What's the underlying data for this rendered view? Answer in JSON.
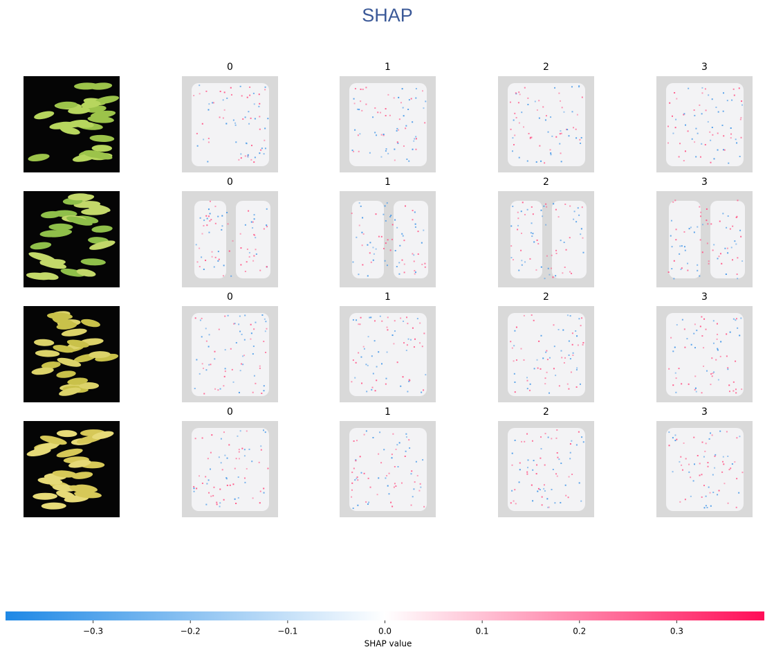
{
  "chart_data": {
    "type": "image-grid",
    "title": "SHAP",
    "rows": [
      {
        "output_names": [
          "0",
          "1",
          "2",
          "3"
        ]
      },
      {
        "output_names": [
          "0",
          "1",
          "2",
          "3"
        ]
      },
      {
        "output_names": [
          "0",
          "1",
          "2",
          "3"
        ]
      },
      {
        "output_names": [
          "0",
          "1",
          "2",
          "3"
        ]
      }
    ],
    "colorbar": {
      "label": "SHAP value",
      "clim": [
        -0.39,
        0.39
      ],
      "ticks": [
        {
          "value": -0.3,
          "label": "−0.3"
        },
        {
          "value": -0.2,
          "label": "−0.2"
        },
        {
          "value": -0.1,
          "label": "−0.1"
        },
        {
          "value": 0,
          "label": "0.0"
        },
        0.1,
        0.2,
        0.3
      ],
      "colors": [
        "#1e88e5",
        "#ffffff",
        "#ff0d57"
      ]
    }
  }
}
